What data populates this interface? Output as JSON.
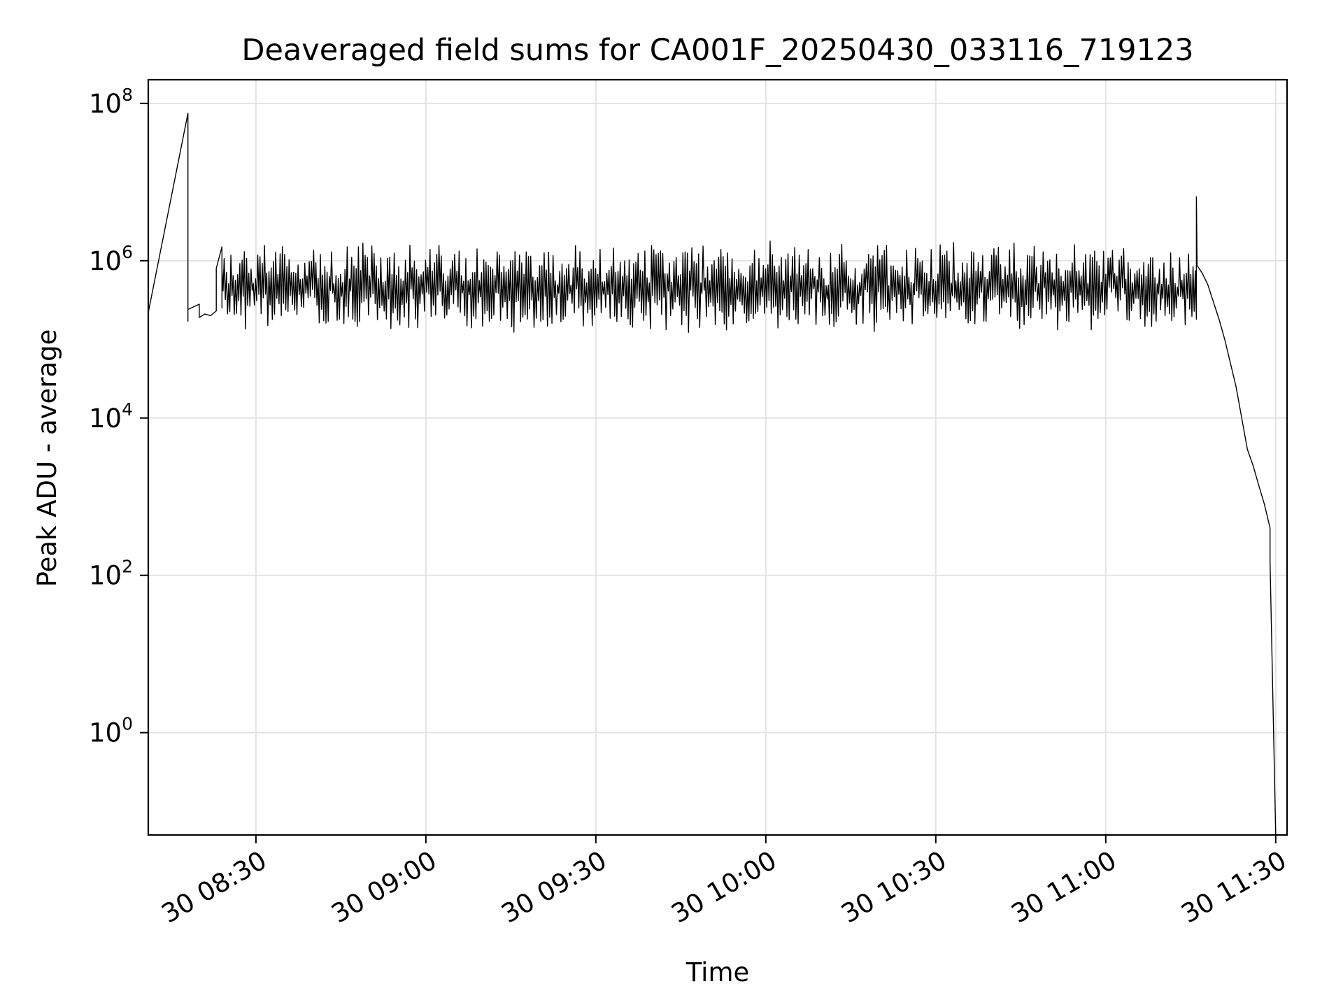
{
  "chart_data": {
    "type": "line",
    "title": "Deaveraged field sums for CA001F_20250430_033116_719123",
    "xlabel": "Time",
    "ylabel": "Peak ADU - average",
    "xscale": "time",
    "yscale": "log",
    "grid": true,
    "legend": "none",
    "xlim": [
      "2025-04-30 08:11",
      "2025-04-30 11:32"
    ],
    "ylim": [
      0.05,
      200000000
    ],
    "x_ticks": [
      {
        "value": "2025-04-30 08:30",
        "label": "30 08:30"
      },
      {
        "value": "2025-04-30 09:00",
        "label": "30 09:00"
      },
      {
        "value": "2025-04-30 09:30",
        "label": "30 09:30"
      },
      {
        "value": "2025-04-30 10:00",
        "label": "30 10:00"
      },
      {
        "value": "2025-04-30 10:30",
        "label": "30 10:30"
      },
      {
        "value": "2025-04-30 11:00",
        "label": "30 11:00"
      },
      {
        "value": "2025-04-30 11:30",
        "label": "30 11:30"
      }
    ],
    "y_ticks": [
      {
        "value": 1,
        "base": "10",
        "exp": "0"
      },
      {
        "value": 100,
        "base": "10",
        "exp": "2"
      },
      {
        "value": 10000,
        "base": "10",
        "exp": "4"
      },
      {
        "value": 1000000,
        "base": "10",
        "exp": "6"
      },
      {
        "value": 100000000,
        "base": "10",
        "exp": "8"
      }
    ],
    "series": [
      {
        "color": "#000000",
        "points": [
          [
            "2025-04-30 08:11",
            220000
          ],
          [
            "2025-04-30 08:18",
            75000000
          ],
          [
            "2025-04-30 08:18",
            170000
          ],
          [
            "2025-04-30 08:18",
            240000
          ],
          [
            "2025-04-30 08:20",
            280000
          ],
          [
            "2025-04-30 08:20",
            190000
          ],
          [
            "2025-04-30 08:21",
            210000
          ],
          [
            "2025-04-30 08:22",
            200000
          ],
          [
            "2025-04-30 08:23",
            230000
          ],
          [
            "2025-04-30 08:23",
            800000
          ],
          [
            "2025-04-30 08:24",
            1500000
          ],
          [
            "2025-04-30 08:24",
            250000
          ]
        ],
        "noisy_segments": [
          {
            "start": "2025-04-30 08:24",
            "end": "2025-04-30 11:16",
            "low": 120000,
            "high": 1800000
          }
        ],
        "spikes": [
          {
            "x": "2025-04-30 11:16",
            "value": 6500000
          }
        ],
        "tail": [
          [
            "2025-04-30 11:16",
            900000
          ],
          [
            "2025-04-30 11:17",
            700000
          ],
          [
            "2025-04-30 11:18",
            500000
          ],
          [
            "2025-04-30 11:19",
            300000
          ],
          [
            "2025-04-30 11:20",
            180000
          ],
          [
            "2025-04-30 11:21",
            100000
          ],
          [
            "2025-04-30 11:22",
            50000
          ],
          [
            "2025-04-30 11:23",
            25000
          ],
          [
            "2025-04-30 11:24",
            10000
          ],
          [
            "2025-04-30 11:25",
            4000
          ],
          [
            "2025-04-30 11:26",
            2500
          ],
          [
            "2025-04-30 11:27",
            1400
          ],
          [
            "2025-04-30 11:28",
            800
          ],
          [
            "2025-04-30 11:29",
            400
          ],
          [
            "2025-04-30 11:29",
            250
          ],
          [
            "2025-04-30 11:29",
            150
          ],
          [
            "2025-04-30 11:30",
            0.05
          ]
        ]
      }
    ]
  }
}
